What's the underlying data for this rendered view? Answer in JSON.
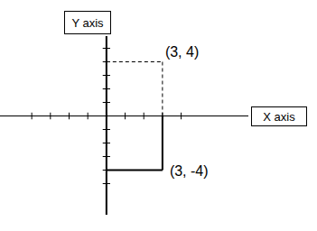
{
  "chart_data": {
    "type": "scatter",
    "x_label": "X axis",
    "y_label": "Y axis",
    "xlim": [
      -5.7,
      7.6
    ],
    "ylim": [
      -7.3,
      5.9
    ],
    "xticks": [
      -4,
      -3,
      -2,
      -1,
      0,
      1,
      2,
      3,
      4
    ],
    "yticks": [
      -5,
      -4,
      -3,
      -2,
      -1,
      0,
      1,
      2,
      3,
      4,
      5
    ],
    "tick_labels": false,
    "data_labels": true,
    "series": [
      {
        "x": [
          3
        ],
        "values": [
          4
        ],
        "value_labels": [
          "(3, 4)"
        ],
        "line_style": "dashed",
        "marker": "none",
        "color": "#000000"
      },
      {
        "x": [
          3
        ],
        "values": [
          -4
        ],
        "value_labels": [
          "(3, -4)"
        ],
        "line_style": "solid",
        "marker": "none",
        "color": "#000000"
      }
    ]
  }
}
